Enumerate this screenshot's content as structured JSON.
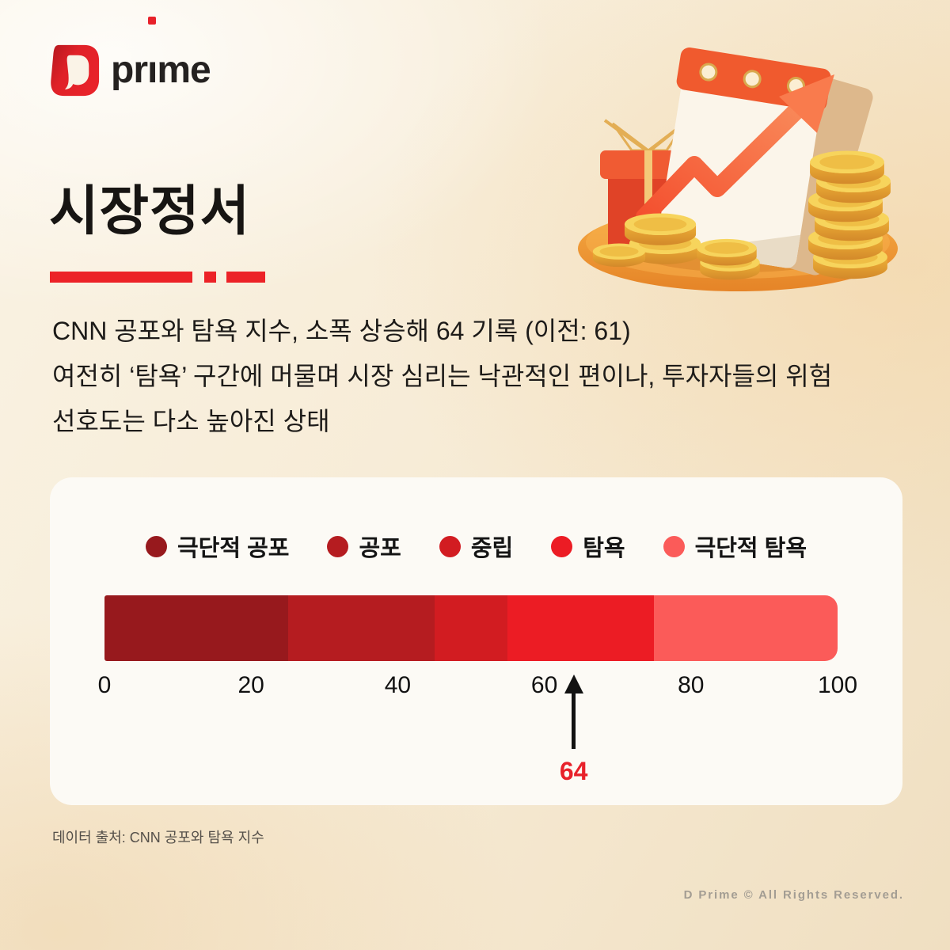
{
  "logo": {
    "word_left": "pr",
    "word_i": "ı",
    "word_right": "me"
  },
  "header": {
    "title": "시장정서"
  },
  "body": {
    "line1": "CNN 공포와 탐욕 지수, 소폭 상승해 64 기록 (이전: 61)",
    "line2": "여전히 ‘탐욕’ 구간에 머물며 시장 심리는 낙관적인 편이나, 투자자들의 위험",
    "line3": "선호도는 다소 높아진 상태"
  },
  "chart_data": {
    "type": "bar",
    "subtype": "linear-gauge",
    "title": "시장정서 (CNN 공포와 탐욕 지수)",
    "value": 64,
    "previous_value": 61,
    "xlim": [
      0,
      100
    ],
    "ticks": [
      0,
      20,
      40,
      60,
      80,
      100
    ],
    "legend_position": "top",
    "segments": [
      {
        "label": "극단적 공포",
        "from": 0,
        "to": 25,
        "color": "#97191D"
      },
      {
        "label": "공포",
        "from": 25,
        "to": 45,
        "color": "#B51C20"
      },
      {
        "label": "중립",
        "from": 45,
        "to": 55,
        "color": "#D21C21"
      },
      {
        "label": "탐욕",
        "from": 55,
        "to": 75,
        "color": "#EC1C24"
      },
      {
        "label": "극단적 탐욕",
        "from": 75,
        "to": 100,
        "color": "#FB5B59"
      }
    ],
    "marker": {
      "value": 64,
      "label": "64"
    }
  },
  "footer": {
    "source": "데이터 출처: CNN 공포와 탐욕 지수",
    "copyright": "D Prime © All Rights Reserved."
  },
  "colors": {
    "accent_red": "#EC2227",
    "logo_red": "#E02128",
    "marker_label_red": "#E8212A",
    "card_bg": "#FCFAF5"
  }
}
